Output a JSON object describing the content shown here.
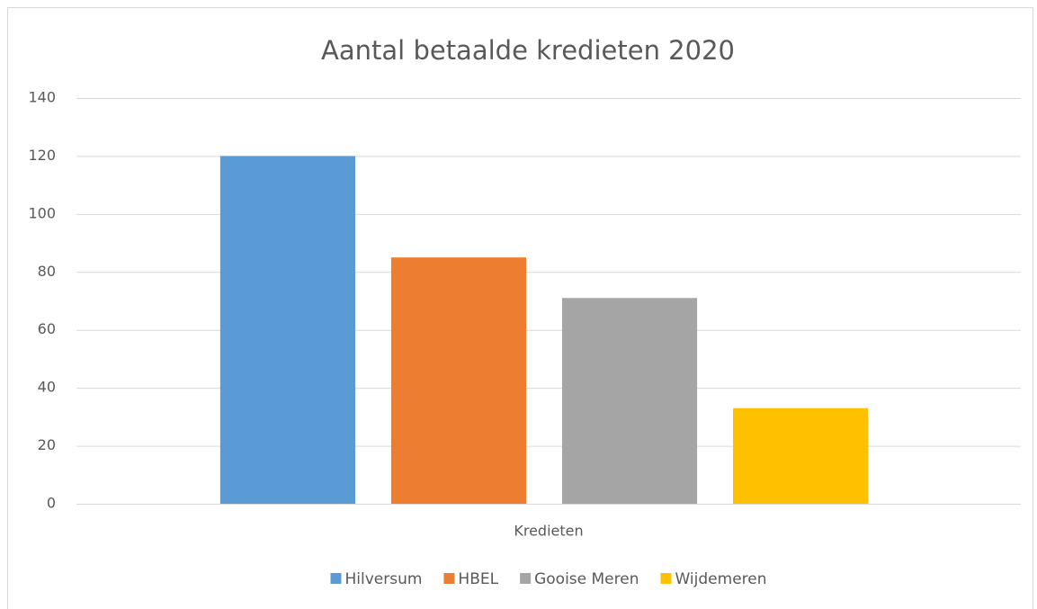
{
  "chart_data": {
    "type": "bar",
    "title": "Aantal betaalde kredieten 2020",
    "categories": [
      "Kredieten"
    ],
    "series": [
      {
        "name": "Hilversum",
        "color": "#5b9bd5",
        "values": [
          120
        ]
      },
      {
        "name": "HBEL",
        "color": "#ed7d31",
        "values": [
          85
        ]
      },
      {
        "name": "Gooise Meren",
        "color": "#a5a5a5",
        "values": [
          71
        ]
      },
      {
        "name": "Wijdemeren",
        "color": "#ffc000",
        "values": [
          33
        ]
      }
    ],
    "ylim": [
      0,
      140
    ],
    "yticks": [
      0,
      20,
      40,
      60,
      80,
      100,
      120,
      140
    ],
    "grid": true,
    "legend": "bottom"
  }
}
